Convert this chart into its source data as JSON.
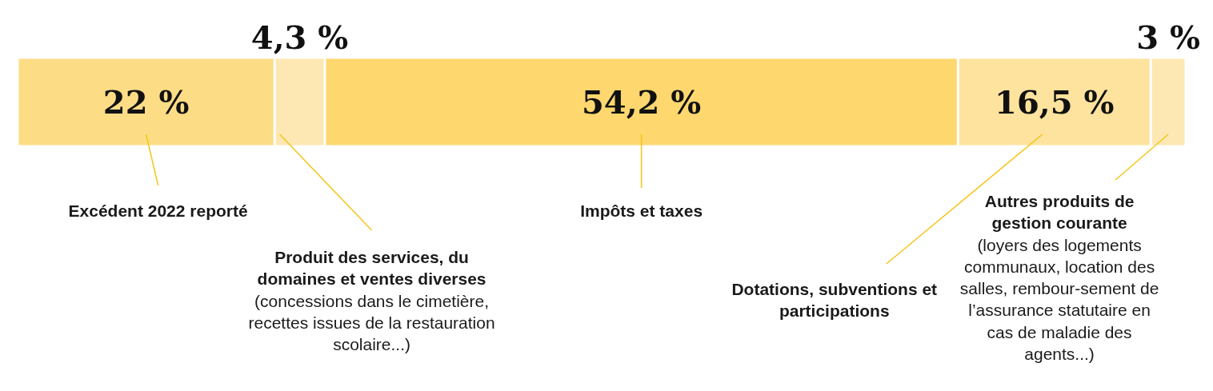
{
  "chart_data": {
    "type": "bar",
    "orientation": "horizontal",
    "stacked": true,
    "categories": [
      null
    ],
    "series": [
      {
        "name": "Excédent 2022 reporté",
        "color": "#fddc86",
        "values": [
          22
        ],
        "value_labels": [
          "22 %"
        ]
      },
      {
        "name": "Produit des services, du domaines et ventes diverses (concessions dans le cimetière, recettes issues de la restauration scolaire...)",
        "color": "#fde8b3",
        "values": [
          4.3
        ],
        "value_labels": [
          "4,3 %"
        ]
      },
      {
        "name": "Impôts et taxes",
        "color": "#fed76e",
        "values": [
          54.2
        ],
        "value_labels": [
          "54,2 %"
        ]
      },
      {
        "name": "Dotations, subventions et participations",
        "color": "#fde39d",
        "values": [
          16.5
        ],
        "value_labels": [
          "16,5 %"
        ]
      },
      {
        "name": "Autres produits de gestion courante (loyers des logements communaux, location des salles, rembour-sement de l’assurance statutaire en cas de maladie des agents...)",
        "color": "#fde8b3",
        "values": [
          3
        ],
        "value_labels": [
          "3 %"
        ]
      }
    ]
  }
}
